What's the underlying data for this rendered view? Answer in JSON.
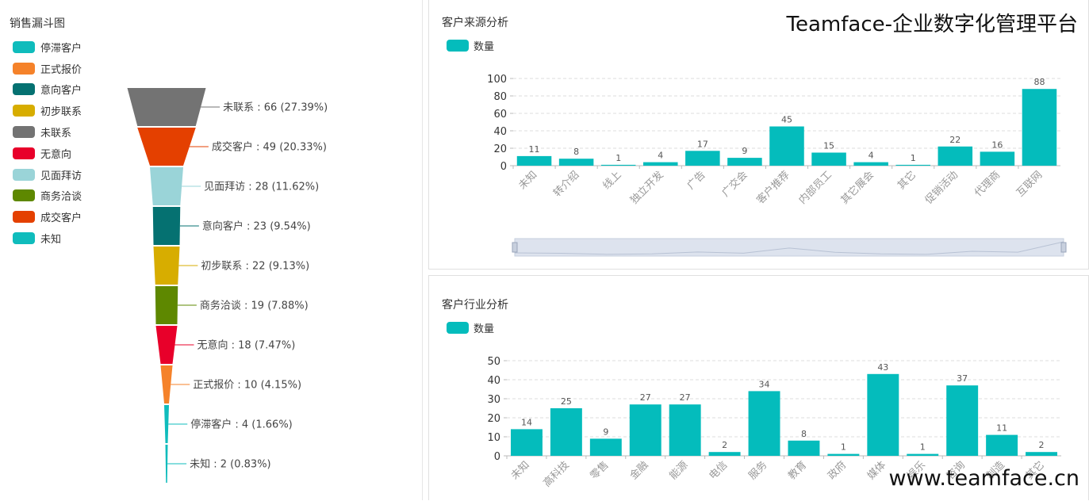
{
  "brand": {
    "title": "Teamface-企业数字化管理平台",
    "url": "www.teamface.cn"
  },
  "funnel": {
    "title": "销售漏斗图",
    "legend": [
      {
        "label": "停滞客户",
        "color": "#0fbcbc"
      },
      {
        "label": "正式报价",
        "color": "#f5822a"
      },
      {
        "label": "意向客户",
        "color": "#057171"
      },
      {
        "label": "初步联系",
        "color": "#d7ad00"
      },
      {
        "label": "未联系",
        "color": "#737373"
      },
      {
        "label": "无意向",
        "color": "#e8002a"
      },
      {
        "label": "见面拜访",
        "color": "#9ad4d8"
      },
      {
        "label": "商务洽谈",
        "color": "#5e8800"
      },
      {
        "label": "成交客户",
        "color": "#e44000"
      },
      {
        "label": "未知",
        "color": "#0fbcbc"
      }
    ]
  },
  "source": {
    "title": "客户来源分析",
    "legend_label": "数量",
    "color": "#04bcbc"
  },
  "industry": {
    "title": "客户行业分析",
    "legend_label": "数量",
    "color": "#04bcbc"
  },
  "chart_data": [
    {
      "type": "funnel",
      "title": "销售漏斗图",
      "stages": [
        {
          "name": "未联系",
          "value": 66,
          "label": "未联系 : 66 (27.39%)",
          "color": "#737373"
        },
        {
          "name": "成交客户",
          "value": 49,
          "label": "成交客户 : 49 (20.33%)",
          "color": "#e44000"
        },
        {
          "name": "见面拜访",
          "value": 28,
          "label": "见面拜访 : 28 (11.62%)",
          "color": "#9ad4d8"
        },
        {
          "name": "意向客户",
          "value": 23,
          "label": "意向客户 : 23 (9.54%)",
          "color": "#057171"
        },
        {
          "name": "初步联系",
          "value": 22,
          "label": "初步联系 : 22 (9.13%)",
          "color": "#d7ad00"
        },
        {
          "name": "商务洽谈",
          "value": 19,
          "label": "商务洽谈 : 19 (7.88%)",
          "color": "#5e8800"
        },
        {
          "name": "无意向",
          "value": 18,
          "label": "无意向 : 18 (7.47%)",
          "color": "#e8002a"
        },
        {
          "name": "正式报价",
          "value": 10,
          "label": "正式报价 : 10 (4.15%)",
          "color": "#f5822a"
        },
        {
          "name": "停滞客户",
          "value": 4,
          "label": "停滞客户 : 4 (1.66%)",
          "color": "#0fbcbc"
        },
        {
          "name": "未知",
          "value": 2,
          "label": "未知 : 2 (0.83%)",
          "color": "#0fbcbc"
        }
      ]
    },
    {
      "type": "bar",
      "title": "客户来源分析",
      "categories": [
        "未知",
        "转介绍",
        "线上",
        "独立开发",
        "广告",
        "广交会",
        "客户推荐",
        "内部员工",
        "其它展会",
        "其它",
        "促销活动",
        "代理商",
        "互联网"
      ],
      "series": [
        {
          "name": "数量",
          "values": [
            11,
            8,
            1,
            4,
            17,
            9,
            45,
            15,
            4,
            1,
            22,
            16,
            88
          ]
        }
      ],
      "ylim": [
        0,
        100
      ],
      "yticks": [
        0,
        20,
        40,
        60,
        80,
        100
      ],
      "grid": true,
      "data_zoom": true
    },
    {
      "type": "bar",
      "title": "客户行业分析",
      "categories": [
        "未知",
        "高科技",
        "零售",
        "金融",
        "能源",
        "电信",
        "服务",
        "教育",
        "政府",
        "媒体",
        "娱乐",
        "咨询",
        "制造",
        "其它"
      ],
      "series": [
        {
          "name": "数量",
          "values": [
            14,
            25,
            9,
            27,
            27,
            2,
            34,
            8,
            1,
            43,
            1,
            37,
            11,
            2
          ]
        }
      ],
      "ylim": [
        0,
        50
      ],
      "yticks": [
        0,
        10,
        20,
        30,
        40,
        50
      ],
      "grid": true
    }
  ]
}
